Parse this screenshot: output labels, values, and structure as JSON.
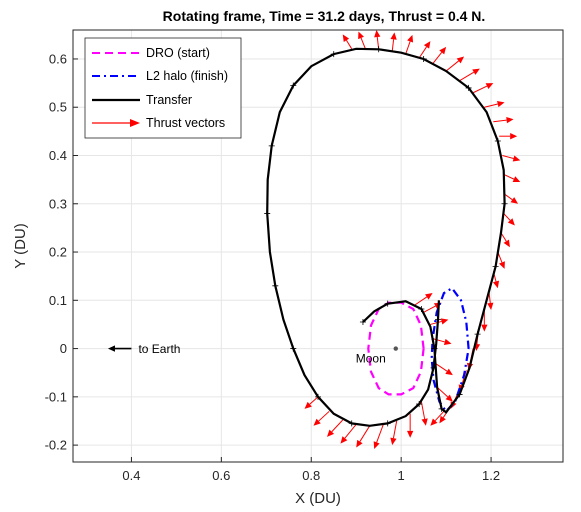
{
  "chart_data": {
    "type": "line",
    "title": "Rotating frame, Time = 31.2 days, Thrust = 0.4 N.",
    "xlabel": "X (DU)",
    "ylabel": "Y (DU)",
    "xlim": [
      0.27,
      1.36
    ],
    "ylim": [
      -0.235,
      0.66
    ],
    "xticks": [
      0.4,
      0.6,
      0.8,
      1,
      1.2
    ],
    "xtick_labels": [
      "0.4",
      "0.6",
      "0.8",
      "1",
      "1.2"
    ],
    "yticks": [
      -0.2,
      -0.1,
      0,
      0.1,
      0.2,
      0.3,
      0.4,
      0.5,
      0.6
    ],
    "ytick_labels": [
      "-0.2",
      "-0.1",
      "0",
      "0.1",
      "0.2",
      "0.3",
      "0.4",
      "0.5",
      "0.6"
    ],
    "grid": true,
    "legend_position": "top-left",
    "series": [
      {
        "name": "DRO (start)",
        "color": "#ff00ff",
        "style": "dashed",
        "points": [
          [
            1.05,
            0
          ],
          [
            1.044,
            0.048
          ],
          [
            1.027,
            0.082
          ],
          [
            1.0,
            0.095
          ],
          [
            0.972,
            0.095
          ],
          [
            0.95,
            0.082
          ],
          [
            0.933,
            0.048
          ],
          [
            0.927,
            0
          ],
          [
            0.933,
            -0.048
          ],
          [
            0.95,
            -0.082
          ],
          [
            0.972,
            -0.095
          ],
          [
            1.0,
            -0.095
          ],
          [
            1.027,
            -0.082
          ],
          [
            1.044,
            -0.048
          ],
          [
            1.05,
            0
          ]
        ]
      },
      {
        "name": "L2 halo (finish)",
        "color": "#0000ff",
        "style": "dash-dot",
        "points": [
          [
            1.15,
            0
          ],
          [
            1.145,
            0.055
          ],
          [
            1.133,
            0.1
          ],
          [
            1.113,
            0.125
          ],
          [
            1.095,
            0.115
          ],
          [
            1.079,
            0.075
          ],
          [
            1.07,
            0.02
          ],
          [
            1.068,
            -0.02
          ],
          [
            1.072,
            -0.065
          ],
          [
            1.085,
            -0.11
          ],
          [
            1.1,
            -0.13
          ],
          [
            1.12,
            -0.11
          ],
          [
            1.14,
            -0.055
          ],
          [
            1.15,
            0
          ]
        ]
      },
      {
        "name": "Transfer",
        "color": "#000000",
        "style": "solid",
        "points": [
          [
            0.915,
            0.055
          ],
          [
            0.94,
            0.077
          ],
          [
            0.97,
            0.093
          ],
          [
            1.01,
            0.098
          ],
          [
            1.045,
            0.082
          ],
          [
            1.065,
            0.045
          ],
          [
            1.074,
            0
          ],
          [
            1.08,
            -0.08
          ],
          [
            1.09,
            -0.125
          ],
          [
            1.1,
            -0.132
          ],
          [
            1.13,
            -0.095
          ],
          [
            1.152,
            -0.04
          ],
          [
            1.17,
            0.03
          ],
          [
            1.19,
            0.1
          ],
          [
            1.21,
            0.17
          ],
          [
            1.222,
            0.24
          ],
          [
            1.23,
            0.3
          ],
          [
            1.228,
            0.37
          ],
          [
            1.215,
            0.43
          ],
          [
            1.19,
            0.49
          ],
          [
            1.15,
            0.54
          ],
          [
            1.1,
            0.575
          ],
          [
            1.05,
            0.6
          ],
          [
            1.0,
            0.613
          ],
          [
            0.95,
            0.62
          ],
          [
            0.9,
            0.621
          ],
          [
            0.85,
            0.61
          ],
          [
            0.8,
            0.585
          ],
          [
            0.76,
            0.545
          ],
          [
            0.73,
            0.49
          ],
          [
            0.712,
            0.42
          ],
          [
            0.703,
            0.35
          ],
          [
            0.702,
            0.28
          ],
          [
            0.708,
            0.2
          ],
          [
            0.72,
            0.13
          ],
          [
            0.738,
            0.06
          ],
          [
            0.76,
            0
          ],
          [
            0.785,
            -0.055
          ],
          [
            0.815,
            -0.1
          ],
          [
            0.85,
            -0.135
          ],
          [
            0.89,
            -0.155
          ],
          [
            0.93,
            -0.16
          ],
          [
            0.97,
            -0.155
          ],
          [
            1.01,
            -0.14
          ],
          [
            1.04,
            -0.115
          ],
          [
            1.06,
            -0.085
          ],
          [
            1.072,
            -0.04
          ],
          [
            1.078,
            0.01
          ],
          [
            1.082,
            0.06
          ],
          [
            1.084,
            0.1
          ]
        ]
      },
      {
        "name": "Thrust vectors",
        "color": "#ff0000",
        "style": "arrows",
        "vectors": [
          [
            0.89,
            0.621,
            -0.02,
            0.03
          ],
          [
            0.92,
            0.622,
            -0.015,
            0.035
          ],
          [
            0.95,
            0.62,
            -0.005,
            0.04
          ],
          [
            0.98,
            0.615,
            0.005,
            0.04
          ],
          [
            1.01,
            0.61,
            0.015,
            0.04
          ],
          [
            1.04,
            0.602,
            0.025,
            0.035
          ],
          [
            1.07,
            0.59,
            0.03,
            0.035
          ],
          [
            1.1,
            0.575,
            0.04,
            0.03
          ],
          [
            1.13,
            0.555,
            0.045,
            0.025
          ],
          [
            1.16,
            0.53,
            0.045,
            0.02
          ],
          [
            1.185,
            0.5,
            0.045,
            0.01
          ],
          [
            1.205,
            0.47,
            0.045,
            0.005
          ],
          [
            1.218,
            0.44,
            0.04,
            0.0
          ],
          [
            1.225,
            0.4,
            0.04,
            -0.01
          ],
          [
            1.23,
            0.36,
            0.035,
            -0.015
          ],
          [
            1.23,
            0.32,
            0.03,
            -0.02
          ],
          [
            1.228,
            0.28,
            0.025,
            -0.025
          ],
          [
            1.222,
            0.24,
            0.02,
            -0.03
          ],
          [
            1.215,
            0.2,
            0.015,
            -0.035
          ],
          [
            1.205,
            0.16,
            0.01,
            -0.035
          ],
          [
            1.195,
            0.12,
            0.005,
            -0.04
          ],
          [
            1.185,
            0.08,
            0.0,
            -0.045
          ],
          [
            1.172,
            0.04,
            -0.005,
            -0.045
          ],
          [
            1.16,
            0.0,
            -0.01,
            -0.045
          ],
          [
            1.145,
            -0.045,
            -0.015,
            -0.045
          ],
          [
            1.13,
            -0.085,
            -0.02,
            -0.04
          ],
          [
            1.11,
            -0.12,
            -0.025,
            -0.035
          ],
          [
            1.095,
            -0.13,
            -0.03,
            -0.03
          ],
          [
            1.08,
            -0.08,
            0.035,
            -0.03
          ],
          [
            1.075,
            -0.03,
            0.04,
            -0.025
          ],
          [
            1.072,
            0.02,
            0.04,
            -0.01
          ],
          [
            1.065,
            0.05,
            0.04,
            0.01
          ],
          [
            1.05,
            0.075,
            0.04,
            0.02
          ],
          [
            1.03,
            0.09,
            0.04,
            0.025
          ],
          [
            0.93,
            -0.16,
            -0.03,
            -0.045
          ],
          [
            0.9,
            -0.157,
            -0.035,
            -0.04
          ],
          [
            0.87,
            -0.148,
            -0.035,
            -0.035
          ],
          [
            0.84,
            -0.13,
            -0.035,
            -0.03
          ],
          [
            0.815,
            -0.1,
            -0.03,
            -0.025
          ],
          [
            0.96,
            -0.158,
            -0.02,
            -0.05
          ],
          [
            0.99,
            -0.15,
            -0.01,
            -0.05
          ],
          [
            1.02,
            -0.135,
            0.0,
            -0.05
          ],
          [
            1.045,
            -0.11,
            0.01,
            -0.05
          ]
        ]
      }
    ],
    "moon": {
      "x": 0.988,
      "y": 0.0,
      "label": "Moon"
    },
    "earth_arrow": {
      "x_from": 0.4,
      "x_to": 0.33,
      "y": 0.0,
      "label": "to Earth"
    }
  }
}
